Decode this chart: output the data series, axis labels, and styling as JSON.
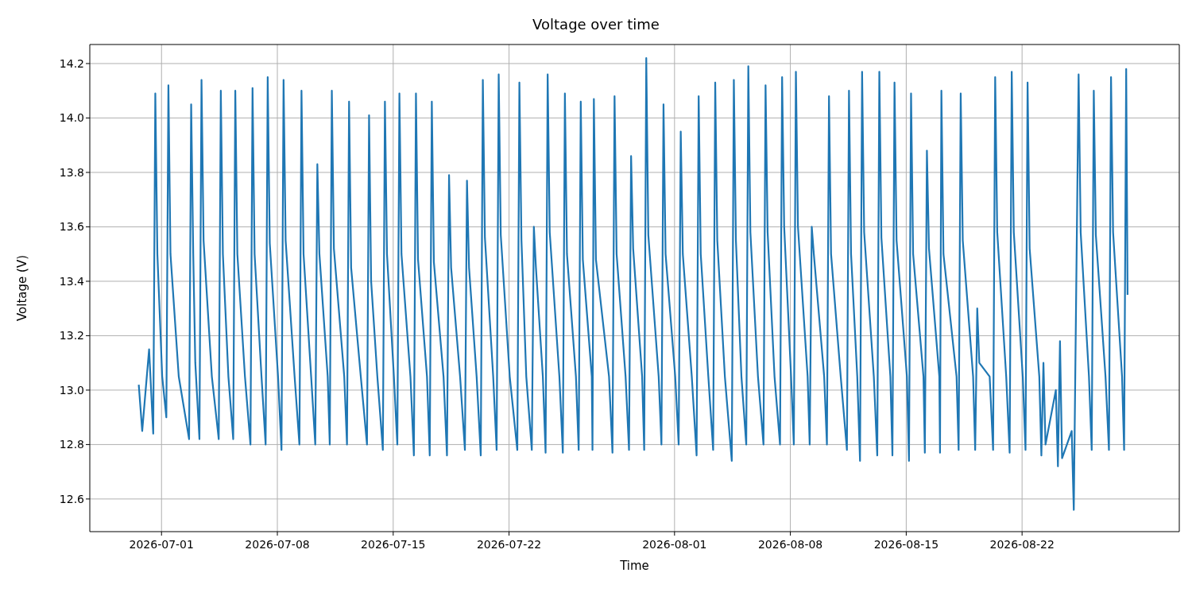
{
  "chart_data": {
    "type": "line",
    "title": "Voltage over time",
    "xlabel": "Time",
    "ylabel": "Voltage (V)",
    "grid": true,
    "legend": false,
    "marker": "none",
    "line_style": "solid",
    "xlim": [
      "2026-06-26T16:00",
      "2026-08-31T12:00"
    ],
    "xticks": [
      "2026-07-01",
      "2026-07-08",
      "2026-07-15",
      "2026-07-22",
      "2026-08-01",
      "2026-08-08",
      "2026-08-15",
      "2026-08-22"
    ],
    "ylim": [
      12.48,
      14.27
    ],
    "yticks": [
      12.6,
      12.8,
      {
        "value": 13,
        "label": "13.0"
      },
      13.2,
      13.4,
      13.6,
      13.8,
      {
        "value": 14,
        "label": "14.0"
      },
      14.2
    ],
    "series": [
      {
        "color": "#1f77b4",
        "x": [
          "2026-06-29T15:00",
          "2026-06-29T20:00",
          "2026-06-30T06:00",
          "2026-06-30T12:00",
          "2026-06-30T15:00",
          "2026-06-30T18:00",
          "2026-07-01T01:00",
          "2026-07-01T07:00",
          "2026-07-01T10:00",
          "2026-07-01T13:00",
          "2026-07-02T01:00",
          "2026-07-02T16:00",
          "2026-07-02T19:00",
          "2026-07-02T22:00",
          "2026-07-03T01:00",
          "2026-07-03T07:00",
          "2026-07-03T10:00",
          "2026-07-03T13:00",
          "2026-07-04T01:00",
          "2026-07-04T11:00",
          "2026-07-04T14:00",
          "2026-07-04T17:00",
          "2026-07-05T01:00",
          "2026-07-05T08:00",
          "2026-07-05T11:00",
          "2026-07-05T14:00",
          "2026-07-06T01:00",
          "2026-07-06T09:00",
          "2026-07-06T12:00",
          "2026-07-06T15:00",
          "2026-07-07T01:00",
          "2026-07-07T07:00",
          "2026-07-07T10:00",
          "2026-07-07T13:00",
          "2026-07-08T01:00",
          "2026-07-08T06:00",
          "2026-07-08T09:00",
          "2026-07-08T12:00",
          "2026-07-09T01:00",
          "2026-07-09T08:00",
          "2026-07-09T11:00",
          "2026-07-09T14:00",
          "2026-07-10T01:00",
          "2026-07-10T07:00",
          "2026-07-10T10:00",
          "2026-07-10T13:00",
          "2026-07-11T01:00",
          "2026-07-11T04:00",
          "2026-07-11T07:00",
          "2026-07-11T10:00",
          "2026-07-12T01:00",
          "2026-07-12T05:00",
          "2026-07-12T08:00",
          "2026-07-12T11:00",
          "2026-07-13T01:00",
          "2026-07-13T10:00",
          "2026-07-13T13:00",
          "2026-07-13T16:00",
          "2026-07-14T01:00",
          "2026-07-14T09:00",
          "2026-07-14T12:00",
          "2026-07-14T15:00",
          "2026-07-15T01:00",
          "2026-07-15T06:00",
          "2026-07-15T09:00",
          "2026-07-15T12:00",
          "2026-07-16T01:00",
          "2026-07-16T06:00",
          "2026-07-16T09:00",
          "2026-07-16T12:00",
          "2026-07-17T01:00",
          "2026-07-17T05:00",
          "2026-07-17T08:00",
          "2026-07-17T11:00",
          "2026-07-18T01:00",
          "2026-07-18T06:00",
          "2026-07-18T09:00",
          "2026-07-18T12:00",
          "2026-07-19T01:00",
          "2026-07-19T08:00",
          "2026-07-19T11:00",
          "2026-07-19T14:00",
          "2026-07-20T01:00",
          "2026-07-20T07:00",
          "2026-07-20T10:00",
          "2026-07-20T13:00",
          "2026-07-21T01:00",
          "2026-07-21T06:00",
          "2026-07-21T09:00",
          "2026-07-21T12:00",
          "2026-07-22T01:00",
          "2026-07-22T12:00",
          "2026-07-22T15:00",
          "2026-07-22T18:00",
          "2026-07-23T01:00",
          "2026-07-23T09:00",
          "2026-07-23T12:00",
          "2026-07-23T15:00",
          "2026-07-24T01:00",
          "2026-07-24T05:00",
          "2026-07-24T08:00",
          "2026-07-24T11:00",
          "2026-07-25T01:00",
          "2026-07-25T06:00",
          "2026-07-25T09:00",
          "2026-07-25T12:00",
          "2026-07-26T01:00",
          "2026-07-26T05:00",
          "2026-07-26T08:00",
          "2026-07-26T11:00",
          "2026-07-27T00:00",
          "2026-07-27T01:00",
          "2026-07-27T03:00",
          "2026-07-27T06:00",
          "2026-07-28T01:00",
          "2026-07-28T06:00",
          "2026-07-28T09:00",
          "2026-07-28T12:00",
          "2026-07-29T01:00",
          "2026-07-29T06:00",
          "2026-07-29T09:00",
          "2026-07-29T12:00",
          "2026-07-30T01:00",
          "2026-07-30T04:00",
          "2026-07-30T07:00",
          "2026-07-30T10:00",
          "2026-07-31T01:00",
          "2026-07-31T05:00",
          "2026-07-31T08:00",
          "2026-07-31T11:00",
          "2026-08-01T01:00",
          "2026-08-01T06:00",
          "2026-08-01T09:00",
          "2026-08-01T12:00",
          "2026-08-02T01:00",
          "2026-08-02T08:00",
          "2026-08-02T11:00",
          "2026-08-02T14:00",
          "2026-08-03T01:00",
          "2026-08-03T08:00",
          "2026-08-03T11:00",
          "2026-08-03T14:00",
          "2026-08-04T01:00",
          "2026-08-04T11:00",
          "2026-08-04T14:00",
          "2026-08-04T17:00",
          "2026-08-05T01:00",
          "2026-08-05T08:00",
          "2026-08-05T11:00",
          "2026-08-05T14:00",
          "2026-08-06T01:00",
          "2026-08-06T09:00",
          "2026-08-06T12:00",
          "2026-08-06T15:00",
          "2026-08-07T01:00",
          "2026-08-07T09:00",
          "2026-08-07T12:00",
          "2026-08-07T15:00",
          "2026-08-08T01:00",
          "2026-08-08T05:00",
          "2026-08-08T08:00",
          "2026-08-08T11:00",
          "2026-08-09T01:00",
          "2026-08-09T04:00",
          "2026-08-09T07:00",
          "2026-08-09T10:00",
          "2026-08-10T01:00",
          "2026-08-10T05:00",
          "2026-08-10T08:00",
          "2026-08-10T11:00",
          "2026-08-11T01:00",
          "2026-08-11T10:00",
          "2026-08-11T13:00",
          "2026-08-11T16:00",
          "2026-08-12T01:00",
          "2026-08-12T05:00",
          "2026-08-12T08:00",
          "2026-08-12T11:00",
          "2026-08-13T01:00",
          "2026-08-13T06:00",
          "2026-08-13T09:00",
          "2026-08-13T12:00",
          "2026-08-14T01:00",
          "2026-08-14T04:00",
          "2026-08-14T07:00",
          "2026-08-14T10:00",
          "2026-08-15T01:00",
          "2026-08-15T04:00",
          "2026-08-15T07:00",
          "2026-08-15T10:00",
          "2026-08-16T01:00",
          "2026-08-16T03:00",
          "2026-08-16T06:00",
          "2026-08-16T09:00",
          "2026-08-17T00:00",
          "2026-08-17T01:00",
          "2026-08-17T03:00",
          "2026-08-17T06:00",
          "2026-08-18T01:00",
          "2026-08-18T04:00",
          "2026-08-18T07:00",
          "2026-08-18T10:00",
          "2026-08-19T01:00",
          "2026-08-19T04:00",
          "2026-08-19T07:00",
          "2026-08-19T10:00",
          "2026-08-20T01:00",
          "2026-08-20T06:00",
          "2026-08-20T09:00",
          "2026-08-20T12:00",
          "2026-08-21T01:00",
          "2026-08-21T06:00",
          "2026-08-21T09:00",
          "2026-08-21T12:00",
          "2026-08-22T01:00",
          "2026-08-22T05:00",
          "2026-08-22T08:00",
          "2026-08-22T11:00",
          "2026-08-23T01:00",
          "2026-08-23T04:00",
          "2026-08-23T07:00",
          "2026-08-23T10:00",
          "2026-08-24T01:00",
          "2026-08-24T04:00",
          "2026-08-24T07:00",
          "2026-08-24T10:00",
          "2026-08-25T00:00",
          "2026-08-25T03:00",
          "2026-08-25T10:00",
          "2026-08-25T13:00",
          "2026-08-26T01:00",
          "2026-08-26T05:00",
          "2026-08-26T08:00",
          "2026-08-26T11:00",
          "2026-08-27T01:00",
          "2026-08-27T06:00",
          "2026-08-27T09:00",
          "2026-08-27T12:00",
          "2026-08-28T01:00",
          "2026-08-28T04:00",
          "2026-08-28T07:00",
          "2026-08-28T09:00"
        ],
        "values": [
          13.02,
          12.85,
          13.15,
          12.84,
          14.09,
          13.5,
          13.05,
          12.9,
          14.12,
          13.5,
          13.05,
          12.82,
          14.05,
          13.5,
          13.1,
          12.82,
          14.14,
          13.55,
          13.05,
          12.82,
          14.1,
          13.5,
          13.05,
          12.82,
          14.1,
          13.5,
          13.05,
          12.8,
          14.11,
          13.5,
          13.05,
          12.8,
          14.15,
          13.54,
          13.05,
          12.78,
          14.14,
          13.55,
          13.05,
          12.8,
          14.1,
          13.5,
          13.05,
          12.8,
          13.83,
          13.5,
          13.05,
          12.8,
          14.1,
          13.52,
          13.05,
          12.8,
          14.06,
          13.45,
          13.05,
          12.8,
          14.01,
          13.4,
          13.05,
          12.78,
          14.06,
          13.5,
          13.05,
          12.8,
          14.09,
          13.5,
          13.05,
          12.76,
          14.09,
          13.48,
          13.05,
          12.76,
          14.06,
          13.47,
          13.05,
          12.76,
          13.79,
          13.45,
          13.05,
          12.78,
          13.77,
          13.45,
          13.05,
          12.76,
          14.14,
          13.56,
          13.05,
          12.78,
          14.16,
          13.57,
          13.05,
          12.78,
          14.13,
          13.55,
          13.05,
          12.78,
          13.6,
          13.45,
          13.05,
          12.77,
          14.16,
          13.58,
          13.05,
          12.77,
          14.09,
          13.5,
          13.05,
          12.78,
          14.06,
          13.48,
          13.05,
          12.78,
          14.07,
          13.48,
          13.05,
          12.77,
          14.08,
          13.5,
          13.05,
          12.78,
          13.86,
          13.52,
          13.05,
          12.78,
          14.22,
          13.57,
          13.05,
          12.8,
          14.05,
          13.5,
          13.05,
          12.8,
          13.95,
          13.5,
          13.05,
          12.76,
          14.08,
          13.5,
          13.05,
          12.78,
          14.13,
          13.55,
          13.05,
          12.74,
          14.14,
          13.55,
          13.05,
          12.8,
          14.19,
          13.58,
          13.05,
          12.8,
          14.12,
          13.58,
          13.05,
          12.8,
          14.15,
          13.6,
          13.05,
          12.8,
          14.17,
          13.6,
          13.05,
          12.8,
          13.6,
          13.5,
          13.05,
          12.8,
          14.08,
          13.5,
          13.05,
          12.78,
          14.1,
          13.5,
          13.05,
          12.74,
          14.17,
          13.58,
          13.05,
          12.76,
          14.17,
          13.56,
          13.05,
          12.76,
          14.13,
          13.55,
          13.05,
          12.74,
          14.09,
          13.5,
          13.05,
          12.77,
          13.88,
          13.52,
          13.05,
          12.77,
          14.1,
          13.5,
          13.05,
          12.78,
          14.09,
          13.55,
          13.05,
          12.78,
          13.3,
          13.1,
          13.05,
          12.78,
          14.15,
          13.58,
          13.05,
          12.77,
          14.17,
          13.58,
          13.05,
          12.78,
          14.13,
          13.52,
          13.05,
          12.76,
          13.1,
          12.8,
          13.0,
          12.72,
          13.18,
          12.75,
          12.85,
          12.56,
          14.16,
          13.58,
          13.05,
          12.78,
          14.1,
          13.57,
          13.05,
          12.78,
          14.15,
          13.58,
          13.05,
          12.78,
          14.18,
          13.35
        ]
      }
    ]
  }
}
